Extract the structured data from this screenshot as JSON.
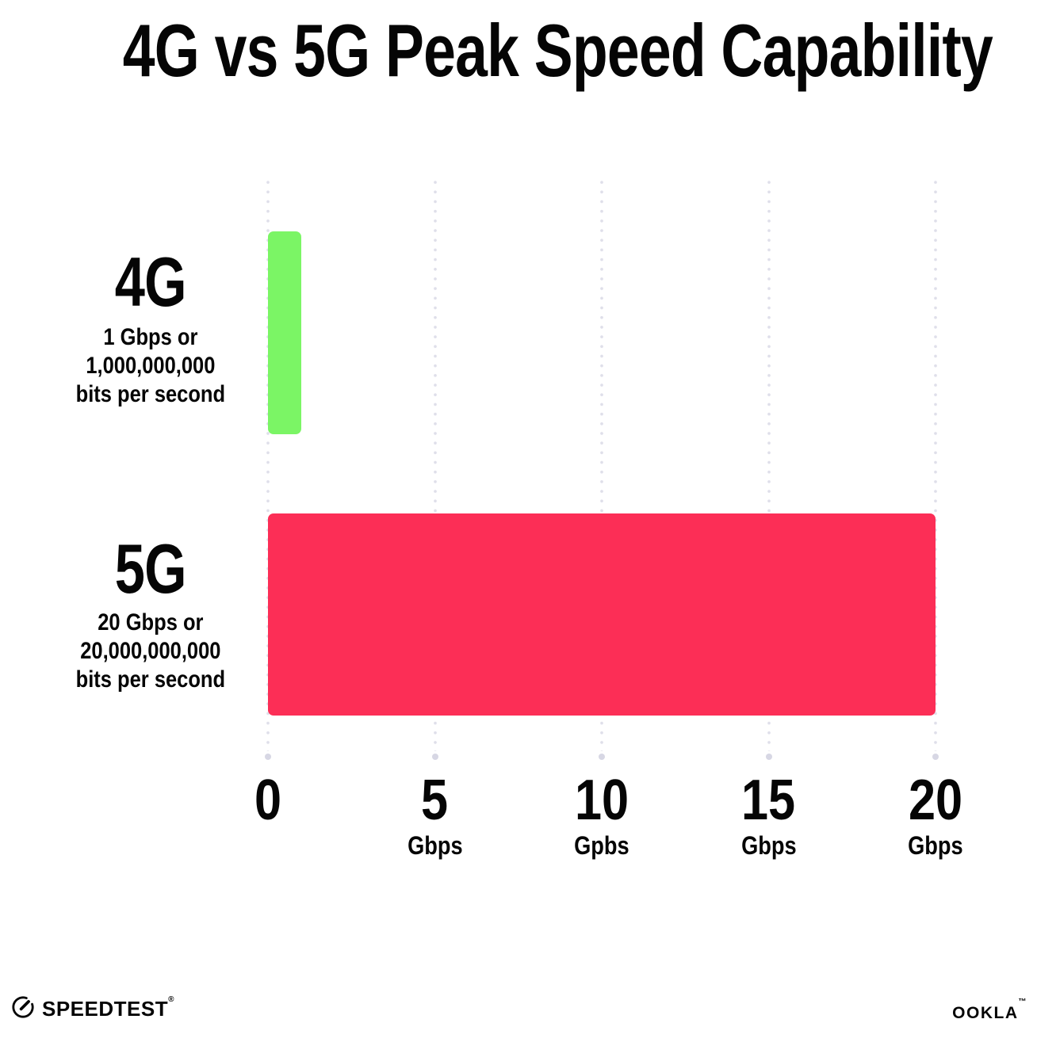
{
  "title": "4G vs 5G Peak Speed Capability",
  "chart_data": {
    "type": "bar",
    "orientation": "horizontal",
    "title": "4G vs 5G Peak Speed Capability",
    "categories": [
      "4G",
      "5G"
    ],
    "values": [
      1,
      20
    ],
    "unit": "Gbps",
    "xlim": [
      0,
      20
    ],
    "grid": "dotted-vertical",
    "bar_colors": [
      "#7BF565",
      "#FC2E56"
    ],
    "row_labels": [
      {
        "heading": "4G",
        "sub": [
          "1 Gbps or",
          "1,000,000,000",
          "bits per second"
        ]
      },
      {
        "heading": "5G",
        "sub": [
          "20 Gbps or",
          "20,000,000,000",
          "bits per second"
        ]
      }
    ],
    "x_ticks": [
      {
        "value": "0",
        "unit": ""
      },
      {
        "value": "5",
        "unit": "Gbps"
      },
      {
        "value": "10",
        "unit": "Gpbs"
      },
      {
        "value": "15",
        "unit": "Gbps"
      },
      {
        "value": "20",
        "unit": "Gbps"
      }
    ]
  },
  "footer": {
    "speedtest_label": "SPEEDTEST",
    "speedtest_mark": "®",
    "ookla_label": "OOKLA",
    "ookla_mark": "™"
  },
  "colors": {
    "bar_4g": "#7BF565",
    "bar_5g": "#FC2E56",
    "text": "#050505",
    "grid_dot": "#DFDFEA",
    "background": "#FFFFFF"
  }
}
